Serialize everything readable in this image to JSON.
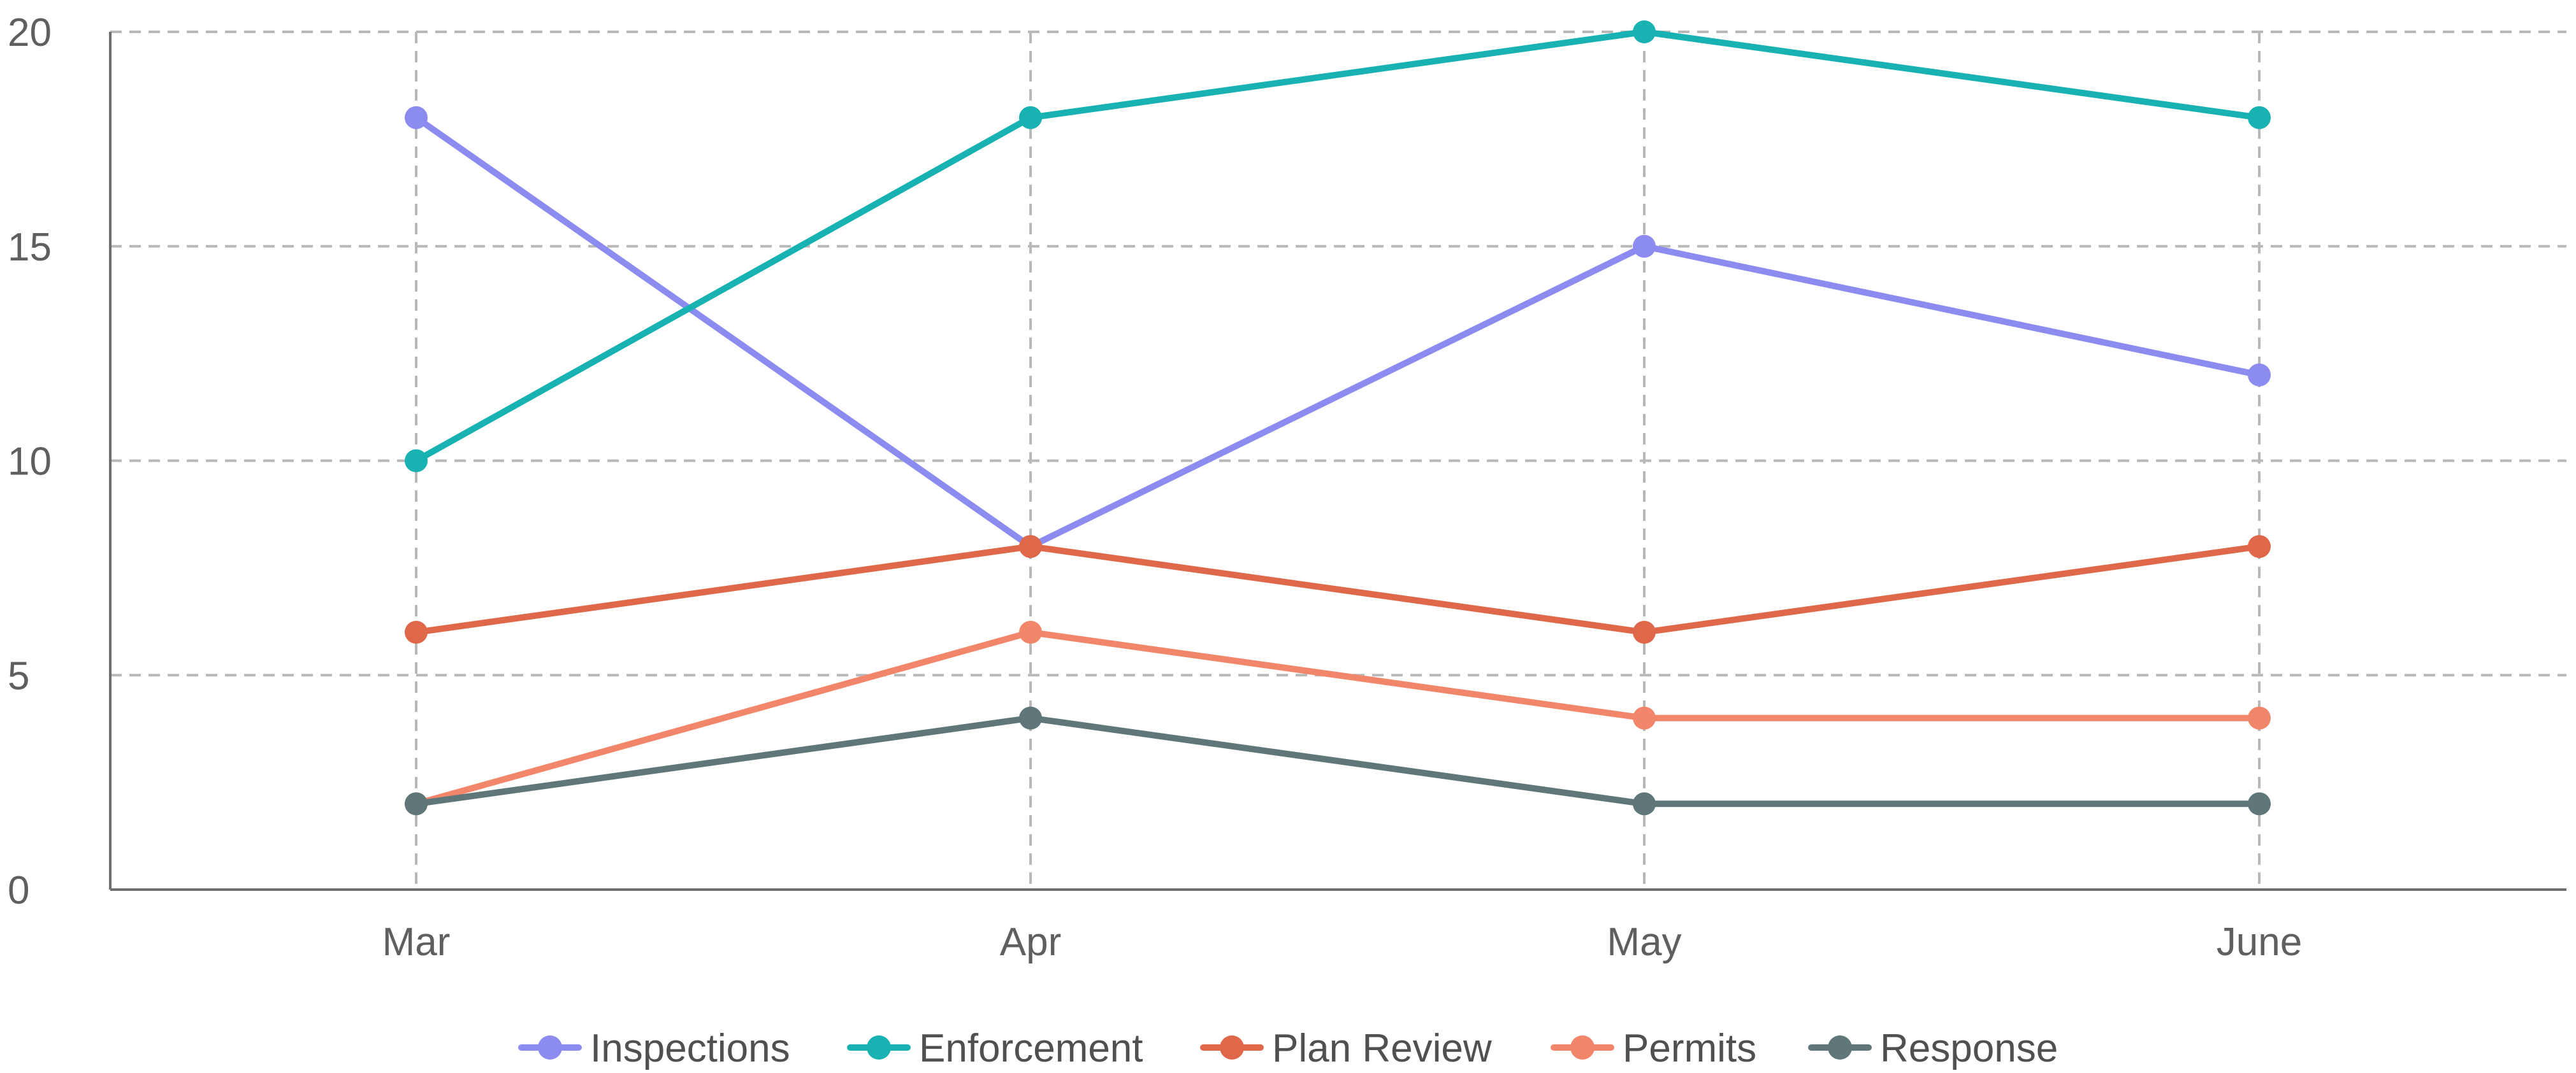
{
  "chart_data": {
    "type": "line",
    "categories": [
      "Mar",
      "Apr",
      "May",
      "June"
    ],
    "ylim": [
      0,
      20
    ],
    "yticks": [
      0,
      5,
      10,
      15,
      20
    ],
    "grid": true,
    "legend_position": "bottom",
    "series": [
      {
        "name": "Inspections",
        "color": "#8c8cf0",
        "values": [
          18,
          8,
          15,
          12
        ]
      },
      {
        "name": "Enforcement",
        "color": "#18b2b2",
        "values": [
          10,
          18,
          20,
          18
        ]
      },
      {
        "name": "Plan Review",
        "color": "#e0684a",
        "values": [
          6,
          8,
          6,
          8
        ]
      },
      {
        "name": "Permits",
        "color": "#f2866a",
        "values": [
          2,
          6,
          4,
          4
        ]
      },
      {
        "name": "Response",
        "color": "#5f7778",
        "values": [
          2,
          4,
          2,
          2
        ]
      }
    ]
  }
}
